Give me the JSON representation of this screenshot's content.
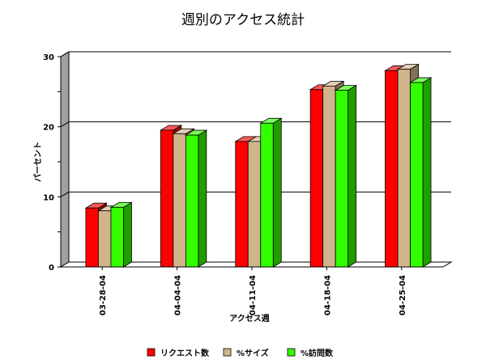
{
  "chart_data": {
    "type": "bar",
    "title": "週別のアクセス統計",
    "xlabel": "アクセス週",
    "ylabel": "パーセント",
    "ylim": [
      0,
      30
    ],
    "yticks": [
      0,
      10,
      20,
      30
    ],
    "categories": [
      "03-28-04",
      "04-04-04",
      "04-11-04",
      "04-18-04",
      "04-25-04"
    ],
    "series": [
      {
        "name": "リクエスト数",
        "color": "#ff0000",
        "values": [
          8.4,
          19.5,
          17.9,
          25.3,
          28.0
        ]
      },
      {
        "name": "%サイズ",
        "color": "#d2b48c",
        "values": [
          8.0,
          19.0,
          17.9,
          25.8,
          28.2
        ]
      },
      {
        "name": "%訪問数",
        "color": "#33ff00",
        "values": [
          8.5,
          18.8,
          20.5,
          25.2,
          26.3
        ]
      }
    ],
    "grid": true,
    "legend_position": "bottom"
  }
}
